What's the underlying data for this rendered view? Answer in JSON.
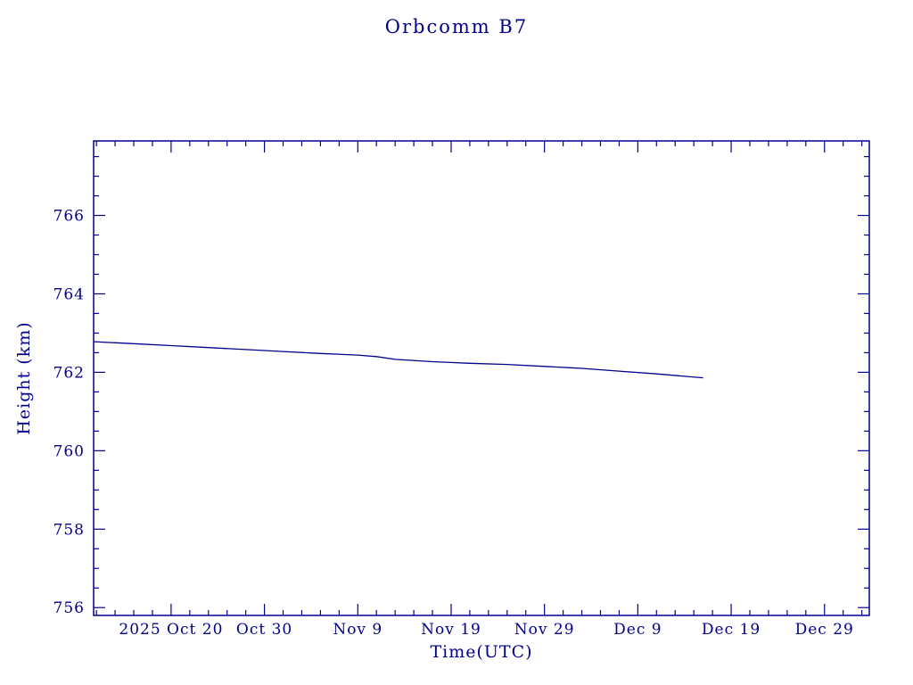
{
  "page": {
    "background": "#ffffff",
    "accent_color": "#00008b"
  },
  "chart": {
    "title": "Orbcomm B7",
    "xlabel": "Time(UTC)",
    "ylabel": "Height (km)"
  },
  "chart_data": {
    "type": "line",
    "title": "Orbcomm B7",
    "xlabel": "Time(UTC)",
    "ylabel": "Height (km)",
    "series": [
      {
        "name": "Orbcomm B7 height",
        "x_unit": "days relative to 2025 Oct 20",
        "x": [
          -8.3,
          -4,
          0,
          4,
          8,
          12,
          16,
          20,
          22,
          24,
          28,
          32,
          36,
          40,
          44,
          48,
          52,
          57
        ],
        "values": [
          762.78,
          762.73,
          762.68,
          762.63,
          762.58,
          762.53,
          762.48,
          762.44,
          762.4,
          762.33,
          762.27,
          762.23,
          762.2,
          762.15,
          762.1,
          762.03,
          761.96,
          761.86
        ]
      }
    ],
    "xlim": [
      -8.3,
      74.8
    ],
    "ylim": [
      755.8,
      767.9
    ],
    "x_major_ticks": [
      {
        "pos": 0,
        "label": "2025 Oct 20"
      },
      {
        "pos": 10,
        "label": "Oct 30"
      },
      {
        "pos": 20,
        "label": "Nov 9"
      },
      {
        "pos": 30,
        "label": "Nov 19"
      },
      {
        "pos": 40,
        "label": "Nov 29"
      },
      {
        "pos": 50,
        "label": "Dec 9"
      },
      {
        "pos": 60,
        "label": "Dec 19"
      },
      {
        "pos": 70,
        "label": "Dec 29"
      }
    ],
    "x_minor_step": 2,
    "y_major_ticks": [
      756,
      758,
      760,
      762,
      764,
      766
    ],
    "y_minor_step": 0.5,
    "line_color": "#00008b",
    "frame_color": "#00008b",
    "grid": false,
    "legend": "none"
  }
}
